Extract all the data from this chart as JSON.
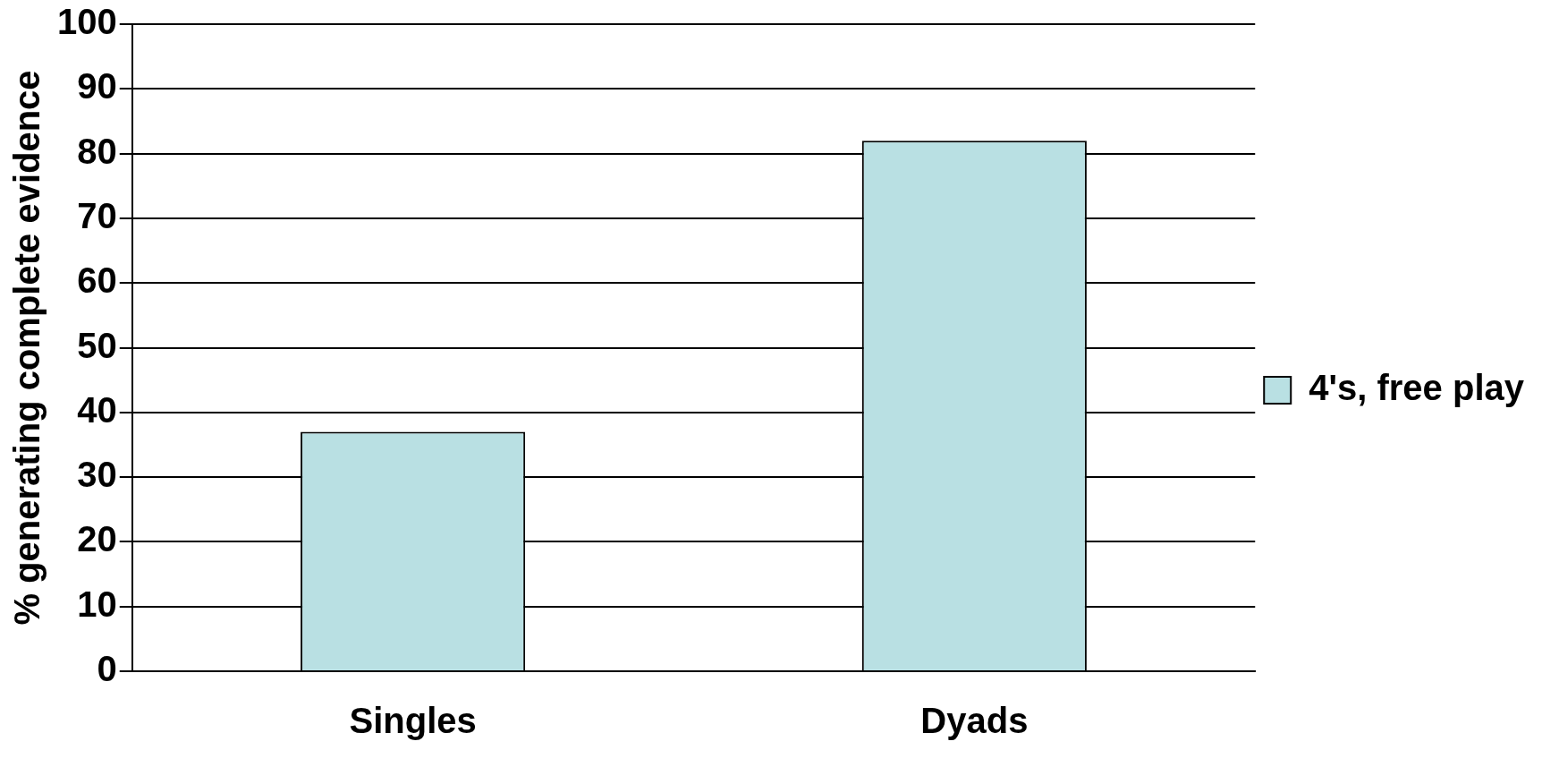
{
  "chart_data": {
    "type": "bar",
    "ylabel": "% generating complete evidence",
    "categories": [
      "Singles",
      "Dyads"
    ],
    "series": [
      {
        "name": "4's, free play",
        "color": "#b9e0e3",
        "values": [
          37,
          82
        ]
      }
    ],
    "ylim": [
      0,
      100
    ],
    "yticks": [
      0,
      10,
      20,
      30,
      40,
      50,
      60,
      70,
      80,
      90,
      100
    ],
    "grid": "y",
    "legend": "right"
  }
}
